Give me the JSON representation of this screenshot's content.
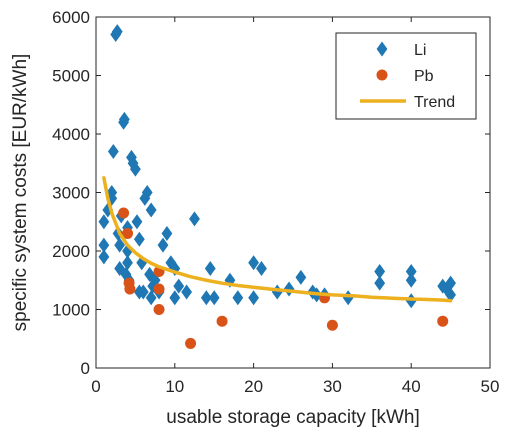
{
  "chart_data": {
    "type": "scatter",
    "xlabel": "usable storage capacity [kWh]",
    "ylabel": "specific system costs [EUR/kWh]",
    "xlim": [
      0,
      50
    ],
    "ylim": [
      0,
      6000
    ],
    "xticks": [
      0,
      10,
      20,
      30,
      40,
      50
    ],
    "yticks": [
      0,
      1000,
      2000,
      3000,
      4000,
      5000,
      6000
    ],
    "xtick_labels": [
      "0",
      "10",
      "20",
      "30",
      "40",
      "50"
    ],
    "ytick_labels": [
      "0",
      "1000",
      "2000",
      "3000",
      "4000",
      "5000",
      "6000"
    ],
    "grid": false,
    "legend_position": "top-right",
    "legend_labels": [
      "Li",
      "Pb",
      "Trend"
    ],
    "series": [
      {
        "name": "Li",
        "marker": "diamond",
        "color": "#1f77b4",
        "points": [
          [
            1,
            1900
          ],
          [
            1,
            2100
          ],
          [
            1,
            2500
          ],
          [
            1.5,
            2700
          ],
          [
            2,
            2900
          ],
          [
            2,
            3000
          ],
          [
            2.2,
            3700
          ],
          [
            2.5,
            5700
          ],
          [
            2.7,
            5750
          ],
          [
            2.8,
            2300
          ],
          [
            3,
            2100
          ],
          [
            3,
            1700
          ],
          [
            3.2,
            2600
          ],
          [
            3.5,
            4200
          ],
          [
            3.6,
            4250
          ],
          [
            3.8,
            1600
          ],
          [
            4,
            2000
          ],
          [
            4,
            2400
          ],
          [
            4,
            1800
          ],
          [
            4.2,
            1500
          ],
          [
            4.5,
            3600
          ],
          [
            4.7,
            3500
          ],
          [
            5,
            3400
          ],
          [
            5.2,
            2500
          ],
          [
            5.5,
            2200
          ],
          [
            5.5,
            1300
          ],
          [
            5.8,
            1800
          ],
          [
            6,
            1300
          ],
          [
            6.2,
            2900
          ],
          [
            6.5,
            3000
          ],
          [
            6.8,
            1600
          ],
          [
            7,
            1200
          ],
          [
            7,
            2700
          ],
          [
            7.2,
            1400
          ],
          [
            7.5,
            1500
          ],
          [
            8,
            1300
          ],
          [
            8.5,
            2100
          ],
          [
            9,
            2300
          ],
          [
            9.5,
            1800
          ],
          [
            10,
            1200
          ],
          [
            10,
            1700
          ],
          [
            10.5,
            1400
          ],
          [
            11.5,
            1300
          ],
          [
            12.5,
            2550
          ],
          [
            14,
            1200
          ],
          [
            14.5,
            1700
          ],
          [
            15,
            1200
          ],
          [
            17,
            1500
          ],
          [
            18,
            1200
          ],
          [
            20,
            1800
          ],
          [
            20,
            1200
          ],
          [
            21,
            1700
          ],
          [
            23,
            1300
          ],
          [
            24.5,
            1350
          ],
          [
            26,
            1550
          ],
          [
            27.5,
            1300
          ],
          [
            28,
            1250
          ],
          [
            29,
            1250
          ],
          [
            32,
            1200
          ],
          [
            36,
            1650
          ],
          [
            36,
            1450
          ],
          [
            40,
            1500
          ],
          [
            40,
            1650
          ],
          [
            40,
            1150
          ],
          [
            44,
            1400
          ],
          [
            44.5,
            1350
          ],
          [
            45,
            1450
          ],
          [
            45,
            1250
          ]
        ]
      },
      {
        "name": "Pb",
        "marker": "circle",
        "color": "#d95319",
        "points": [
          [
            3.5,
            2650
          ],
          [
            4,
            2300
          ],
          [
            4.2,
            1450
          ],
          [
            4.3,
            1350
          ],
          [
            8,
            1650
          ],
          [
            8,
            1350
          ],
          [
            8,
            1000
          ],
          [
            12,
            420
          ],
          [
            16,
            800
          ],
          [
            29,
            1200
          ],
          [
            30,
            730
          ],
          [
            44,
            800
          ]
        ]
      },
      {
        "name": "Trend",
        "type": "line",
        "color": "#edb120",
        "x": [
          1,
          1.5,
          2,
          3,
          4,
          5,
          6,
          7,
          8,
          10,
          12,
          14,
          16,
          18,
          20,
          22,
          25,
          28,
          30,
          33,
          35,
          38,
          40,
          42,
          44,
          45
        ],
        "y": [
          3250,
          2900,
          2650,
          2300,
          2100,
          1970,
          1870,
          1790,
          1730,
          1640,
          1560,
          1500,
          1450,
          1410,
          1380,
          1350,
          1310,
          1270,
          1250,
          1230,
          1210,
          1190,
          1180,
          1170,
          1160,
          1150
        ]
      }
    ]
  },
  "colors": {
    "li": "#1f77b4",
    "pb": "#d95319",
    "trend": "#edb120",
    "axis": "#262626"
  }
}
